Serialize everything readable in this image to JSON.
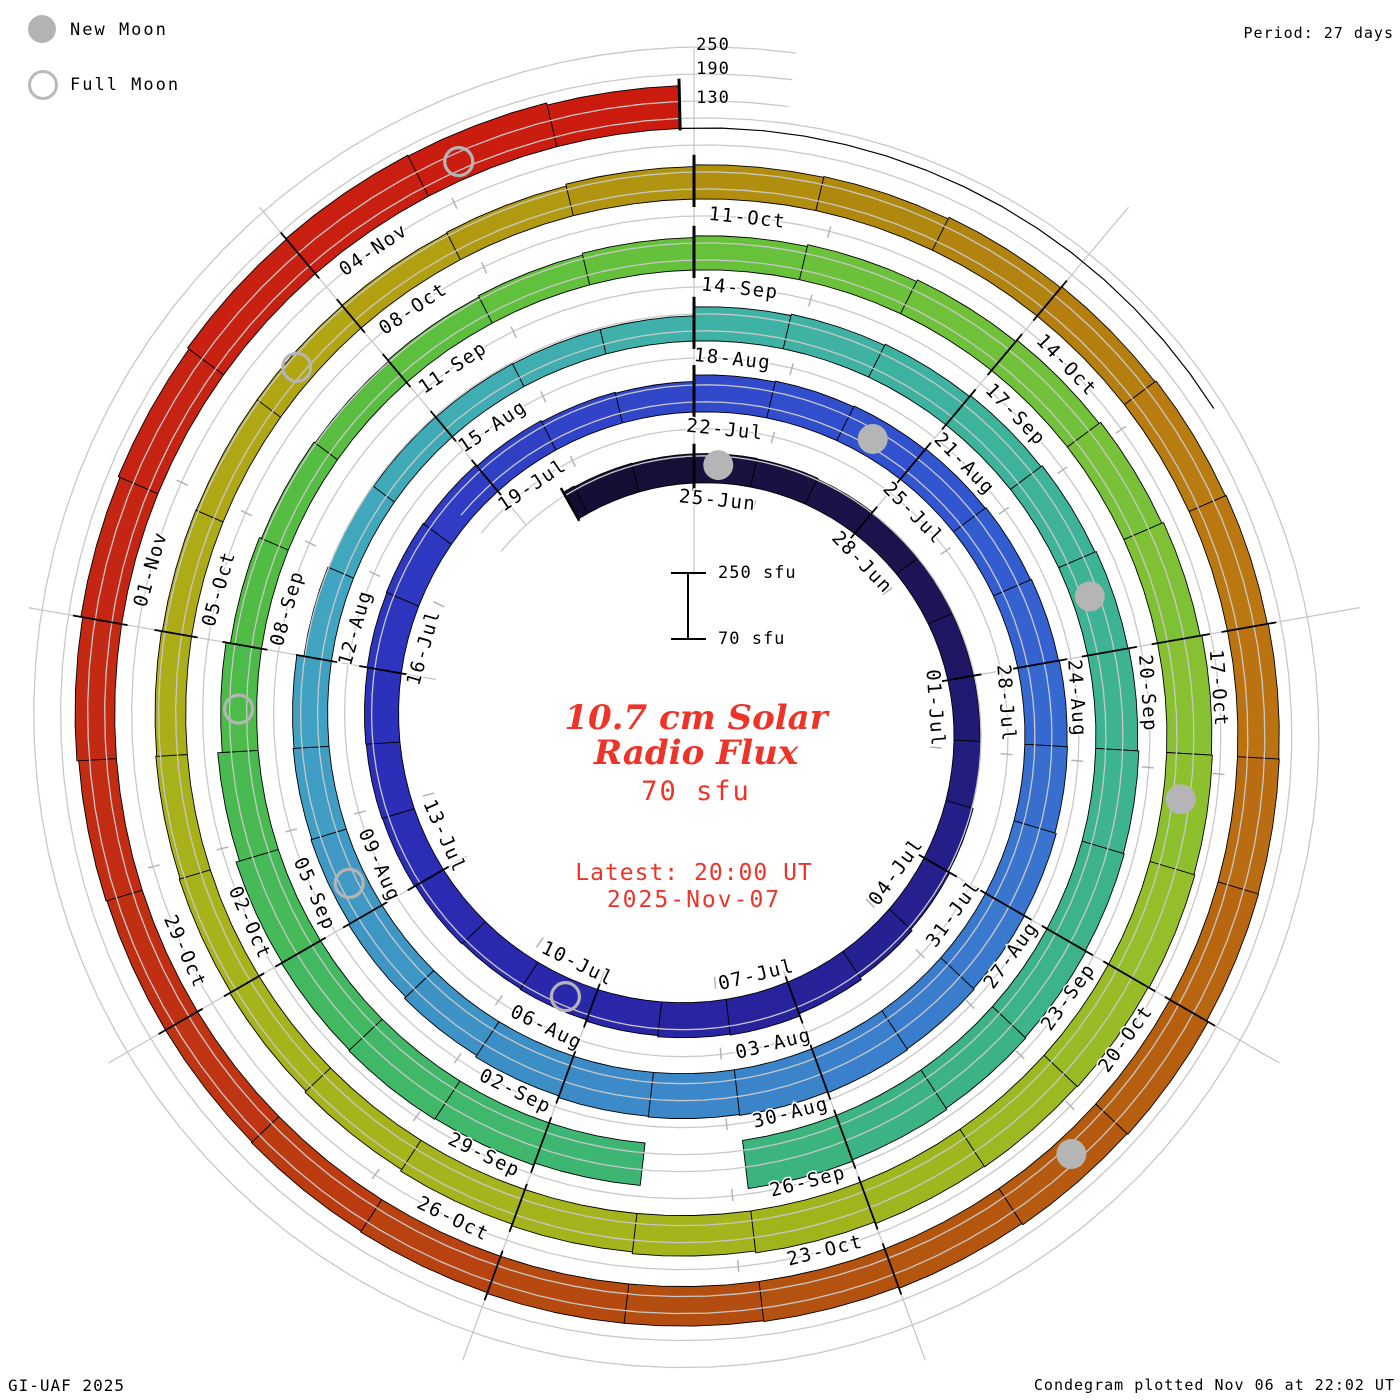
{
  "legend": {
    "new_moon_label": "New Moon",
    "full_moon_label": "Full Moon"
  },
  "header": {
    "period_label": "Period: 27 days"
  },
  "footer": {
    "left": "GI-UAF 2025",
    "right": "Condegram plotted Nov 06 at 22:02 UT"
  },
  "center": {
    "title_line1": "10.7 cm Solar",
    "title_line2": "Radio Flux",
    "current_value": "70 sfu",
    "latest_line1": "Latest: 20:00 UT",
    "latest_line2": "2025-Nov-07",
    "scale_top_label": "250 sfu",
    "scale_bottom_label": "70 sfu"
  },
  "radial_labels": [
    "250",
    "190",
    "130"
  ],
  "colors": {
    "moon_gray": "#b5b5b5",
    "grid_gray": "#c8c8c8",
    "spoke_gray": "#c4c4c4",
    "tick_black": "#000000",
    "label_black": "#000000",
    "accent_red_text": "#ee3428"
  },
  "chart_data": {
    "type": "spiral-polar-condegram",
    "title": "10.7 cm Solar Radio Flux",
    "period_days": 27,
    "start_day_offset": -2.2,
    "end_day_offset": 134.9,
    "flux_baseline_sfu": 70,
    "gridline_levels_sfu": [
      130,
      190,
      250
    ],
    "day_zero_date": "25-Jun",
    "label_interval_days": 3,
    "day_labels": [
      "25-Jun",
      "28-Jun",
      "01-Jul",
      "04-Jul",
      "07-Jul",
      "10-Jul",
      "13-Jul",
      "16-Jul",
      "19-Jul",
      "22-Jul",
      "25-Jul",
      "28-Jul",
      "31-Jul",
      "03-Aug",
      "06-Aug",
      "09-Aug",
      "12-Aug",
      "15-Aug",
      "18-Aug",
      "21-Aug",
      "24-Aug",
      "27-Aug",
      "30-Aug",
      "02-Sep",
      "05-Sep",
      "08-Sep",
      "11-Sep",
      "14-Sep",
      "17-Sep",
      "20-Sep",
      "23-Sep",
      "26-Sep",
      "29-Sep",
      "02-Oct",
      "05-Oct",
      "08-Oct",
      "11-Oct",
      "14-Oct",
      "17-Oct",
      "20-Oct",
      "23-Oct",
      "26-Oct",
      "29-Oct",
      "01-Nov",
      "04-Nov"
    ],
    "flux_start_day": -3,
    "flux_sfu": [
      138,
      136,
      135,
      135,
      134,
      132,
      130,
      129,
      128,
      128,
      130,
      133,
      136,
      140,
      145,
      150,
      148,
      145,
      142,
      140,
      142,
      144,
      145,
      146,
      147,
      148,
      146,
      143,
      140,
      138,
      152,
      154,
      156,
      158,
      160,
      162,
      164,
      165,
      168,
      170,
      172,
      174,
      172,
      170,
      168,
      164,
      160,
      156,
      152,
      150,
      148,
      132,
      130,
      128,
      127,
      126,
      126,
      146,
      149,
      152,
      155,
      158,
      161,
      163,
      166,
      168,
      170,
      172,
      175,
      178,
      null,
      165,
      170,
      172,
      170,
      168,
      160,
      150,
      140,
      135,
      132,
      135,
      138,
      142,
      146,
      150,
      154,
      158,
      162,
      166,
      170,
      172,
      174,
      172,
      170,
      168,
      164,
      160,
      156,
      152,
      148,
      145,
      142,
      140,
      138,
      136,
      135,
      135,
      136,
      138,
      142,
      146,
      148,
      152,
      155,
      158,
      160,
      162,
      163,
      164,
      168,
      166,
      163,
      160,
      158,
      158,
      156,
      154,
      152,
      152,
      154,
      158,
      162,
      166,
      170,
      172,
      170,
      165,
      158
    ],
    "moons": {
      "new_moon_days": [
        0.4,
        29.4,
        59.4,
        88.4,
        118.4
      ],
      "full_moon_days": [
        15.4,
        45.4,
        74.4,
        104.4,
        133.3
      ]
    },
    "colormap": [
      [
        -3,
        "#120c30"
      ],
      [
        0,
        "#170f3a"
      ],
      [
        4,
        "#1d1350"
      ],
      [
        8,
        "#241e85"
      ],
      [
        14,
        "#2925a5"
      ],
      [
        20,
        "#2c2fba"
      ],
      [
        26,
        "#3145c9"
      ],
      [
        30,
        "#3153d0"
      ],
      [
        36,
        "#3a78cf"
      ],
      [
        42,
        "#3c8cc7"
      ],
      [
        48,
        "#41a3c2"
      ],
      [
        54,
        "#3fb2a8"
      ],
      [
        60,
        "#3db394"
      ],
      [
        66,
        "#3cb381"
      ],
      [
        71,
        "#40b865"
      ],
      [
        75,
        "#4fbb45"
      ],
      [
        80,
        "#63c13b"
      ],
      [
        85,
        "#74c13a"
      ],
      [
        89,
        "#92c02c"
      ],
      [
        93,
        "#a2b41c"
      ],
      [
        100,
        "#a8b31b"
      ],
      [
        105,
        "#b2a311"
      ],
      [
        110,
        "#b0850d"
      ],
      [
        114,
        "#bc7612"
      ],
      [
        118,
        "#b55c0e"
      ],
      [
        122,
        "#b44c10"
      ],
      [
        126,
        "#c03012"
      ],
      [
        130,
        "#c62414"
      ],
      [
        135,
        "#cc1a0e"
      ]
    ]
  }
}
